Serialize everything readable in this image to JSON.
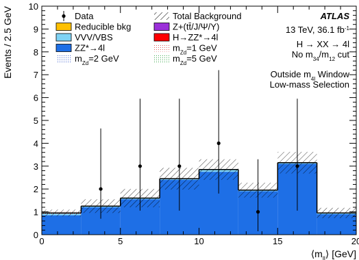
{
  "chart_data": {
    "type": "bar",
    "xlabel_main": "⟨m",
    "xlabel_sub": "ll",
    "xlabel_unit": "⟩ [GeV]",
    "ylabel": "Events / 2.5 GeV",
    "xlim": [
      0,
      20
    ],
    "ylim": [
      0,
      10
    ],
    "xticks": [
      "0",
      "5",
      "10",
      "15",
      "20"
    ],
    "yticks": [
      "0",
      "1",
      "2",
      "3",
      "4",
      "5",
      "6",
      "7",
      "8",
      "9",
      "10"
    ],
    "bin_edges": [
      0,
      2.5,
      5,
      7.5,
      10,
      12.5,
      15,
      17.5,
      20
    ],
    "series": [
      {
        "name": "ZZ*→4l",
        "color": "#1e6fe6",
        "values": [
          0.85,
          1.2,
          1.55,
          2.4,
          2.75,
          1.9,
          3.1,
          0.9
        ]
      },
      {
        "name": "Total Background",
        "pattern": "hatched",
        "values": [
          0.95,
          1.25,
          1.6,
          2.45,
          2.85,
          1.95,
          3.15,
          0.95
        ],
        "uncertainty": [
          0.3,
          0.6,
          0.8,
          0.95,
          0.9,
          0.65,
          0.95,
          0.45
        ]
      }
    ],
    "data": {
      "name": "Data",
      "x": [
        3.75,
        6.25,
        8.75,
        11.25,
        13.75,
        16.25
      ],
      "y": [
        2,
        3,
        3,
        4,
        1,
        3
      ],
      "err_low": [
        1.3,
        1.95,
        1.95,
        2.2,
        0.85,
        1.95
      ],
      "err_high": [
        2.65,
        2.95,
        2.95,
        3.2,
        2.3,
        2.95
      ]
    },
    "legend_col1": [
      {
        "label": "Data",
        "kind": "data"
      },
      {
        "label": "Reducible bkg",
        "kind": "fill",
        "color": "#ffc000"
      },
      {
        "label": "VVV/VBS",
        "kind": "fill",
        "color": "#7fd3f5"
      },
      {
        "label": "ZZ*→4l",
        "kind": "fill",
        "color": "#1e6fe6"
      },
      {
        "label": "m",
        "sub": "Zd",
        "suffix": "=2 GeV",
        "kind": "dots",
        "color": "#3355cc"
      }
    ],
    "legend_col2": [
      {
        "label": "Total Background",
        "kind": "hatch"
      },
      {
        "label": "Z+(tt̄/J/Ψ/Υ)",
        "kind": "fill",
        "color": "#9b30d9"
      },
      {
        "label": "H→ZZ*→4l",
        "kind": "fill",
        "color": "#ff0000"
      },
      {
        "label": "m",
        "sub": "Zd",
        "suffix": "=1 GeV",
        "kind": "dots",
        "color": "#e06060"
      },
      {
        "label": "m",
        "sub": "Zd",
        "suffix": "=5 GeV",
        "kind": "dots",
        "color": "#3aa64a"
      }
    ],
    "annotations": {
      "experiment": "ATLAS",
      "energy": "13 TeV, 36.1 fb",
      "energy_sup": "-1",
      "process": "H → XX → 4l",
      "cut_prefix": "No m",
      "cut_sub1": "34",
      "cut_mid": "/m",
      "cut_sub2": "12",
      "cut_suffix": " cut",
      "region_prefix": "Outside m",
      "region_sub": "4l",
      "region_suffix": " Window",
      "selection": "Low-mass Selection"
    }
  }
}
